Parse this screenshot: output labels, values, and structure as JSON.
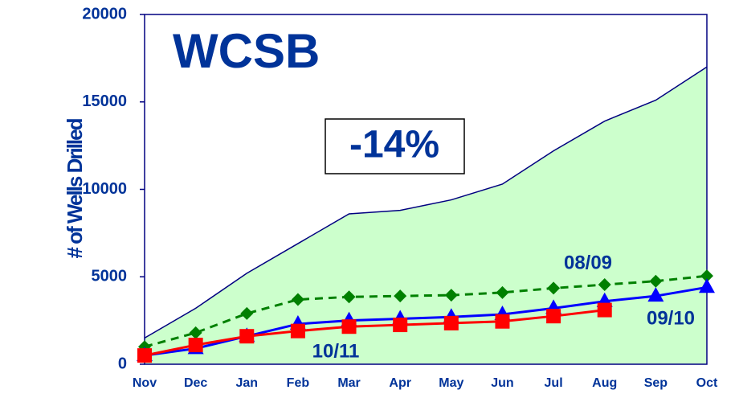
{
  "chart_data": {
    "type": "line",
    "title": "WCSB",
    "annotation": "-14%",
    "ylabel": "# of Wells Drilled",
    "categories": [
      "Nov",
      "Dec",
      "Jan",
      "Feb",
      "Mar",
      "Apr",
      "May",
      "Jun",
      "Jul",
      "Aug",
      "Sep",
      "Oct"
    ],
    "ylim": [
      0,
      20000
    ],
    "yticks": [
      0,
      5000,
      10000,
      15000,
      20000
    ],
    "area": {
      "color": "#ccffcc",
      "line_color": "#000080",
      "values": [
        1500,
        3200,
        5200,
        6900,
        8600,
        8800,
        9400,
        10300,
        12200,
        13900,
        15100,
        17000
      ]
    },
    "series": [
      {
        "name": "08/09",
        "color": "#008000",
        "marker": "diamond",
        "dashed": true,
        "values": [
          1000,
          1800,
          2900,
          3700,
          3850,
          3900,
          3950,
          4100,
          4350,
          4550,
          4750,
          5050
        ]
      },
      {
        "name": "09/10",
        "color": "#0000ff",
        "marker": "triangle",
        "dashed": false,
        "values": [
          500,
          900,
          1600,
          2300,
          2500,
          2600,
          2700,
          2850,
          3200,
          3600,
          3900,
          4400
        ]
      },
      {
        "name": "10/11",
        "color": "#ff0000",
        "marker": "square",
        "dashed": false,
        "values": [
          500,
          1100,
          1600,
          1900,
          2150,
          2250,
          2350,
          2450,
          2750,
          3100,
          null,
          null
        ]
      }
    ]
  }
}
